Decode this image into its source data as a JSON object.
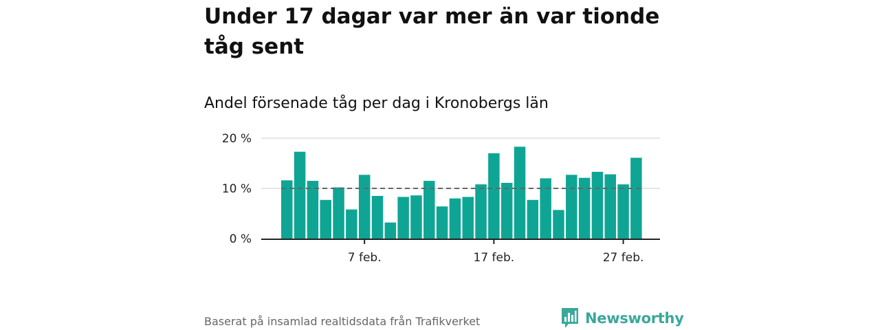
{
  "title": "Under 17 dagar var mer än var tionde tåg sent",
  "subtitle": "Andel försenade tåg per dag i Kronobergs län",
  "footer": {
    "source": "Baserat på insamlad realtidsdata från Trafikverket",
    "brand": "Newsworthy",
    "brand_icon": "bar-chart-logo-icon"
  },
  "colors": {
    "bar": "#0fa594",
    "reference_line": "#666666",
    "grid": "#dddddd",
    "axis": "#222222",
    "brand": "#3aa89a"
  },
  "chart_data": {
    "type": "bar",
    "xlabel": "",
    "ylabel": "",
    "ylim": [
      0,
      20
    ],
    "y_ticks": [
      {
        "value": 0,
        "label": "0 %"
      },
      {
        "value": 10,
        "label": "10 %"
      },
      {
        "value": 20,
        "label": "20 %"
      }
    ],
    "x_ticks": [
      {
        "day": 7,
        "label": "7 feb."
      },
      {
        "day": 17,
        "label": "17 feb."
      },
      {
        "day": 27,
        "label": "27 feb."
      }
    ],
    "grid": true,
    "reference_line": {
      "value": 10,
      "style": "dashed"
    },
    "categories": [
      "1 feb.",
      "2 feb.",
      "3 feb.",
      "4 feb.",
      "5 feb.",
      "6 feb.",
      "7 feb.",
      "8 feb.",
      "9 feb.",
      "10 feb.",
      "11 feb.",
      "12 feb.",
      "13 feb.",
      "14 feb.",
      "15 feb.",
      "16 feb.",
      "17 feb.",
      "18 feb.",
      "19 feb.",
      "20 feb.",
      "21 feb.",
      "22 feb.",
      "23 feb.",
      "24 feb.",
      "25 feb.",
      "26 feb.",
      "27 feb.",
      "28 feb."
    ],
    "values": [
      11.6,
      17.3,
      11.5,
      7.7,
      10.2,
      5.8,
      12.7,
      8.5,
      3.2,
      8.3,
      8.6,
      11.5,
      6.4,
      8.0,
      8.3,
      10.8,
      17.0,
      11.1,
      18.3,
      7.7,
      12.0,
      5.7,
      12.7,
      12.1,
      13.3,
      12.8,
      10.8,
      16.1
    ]
  }
}
